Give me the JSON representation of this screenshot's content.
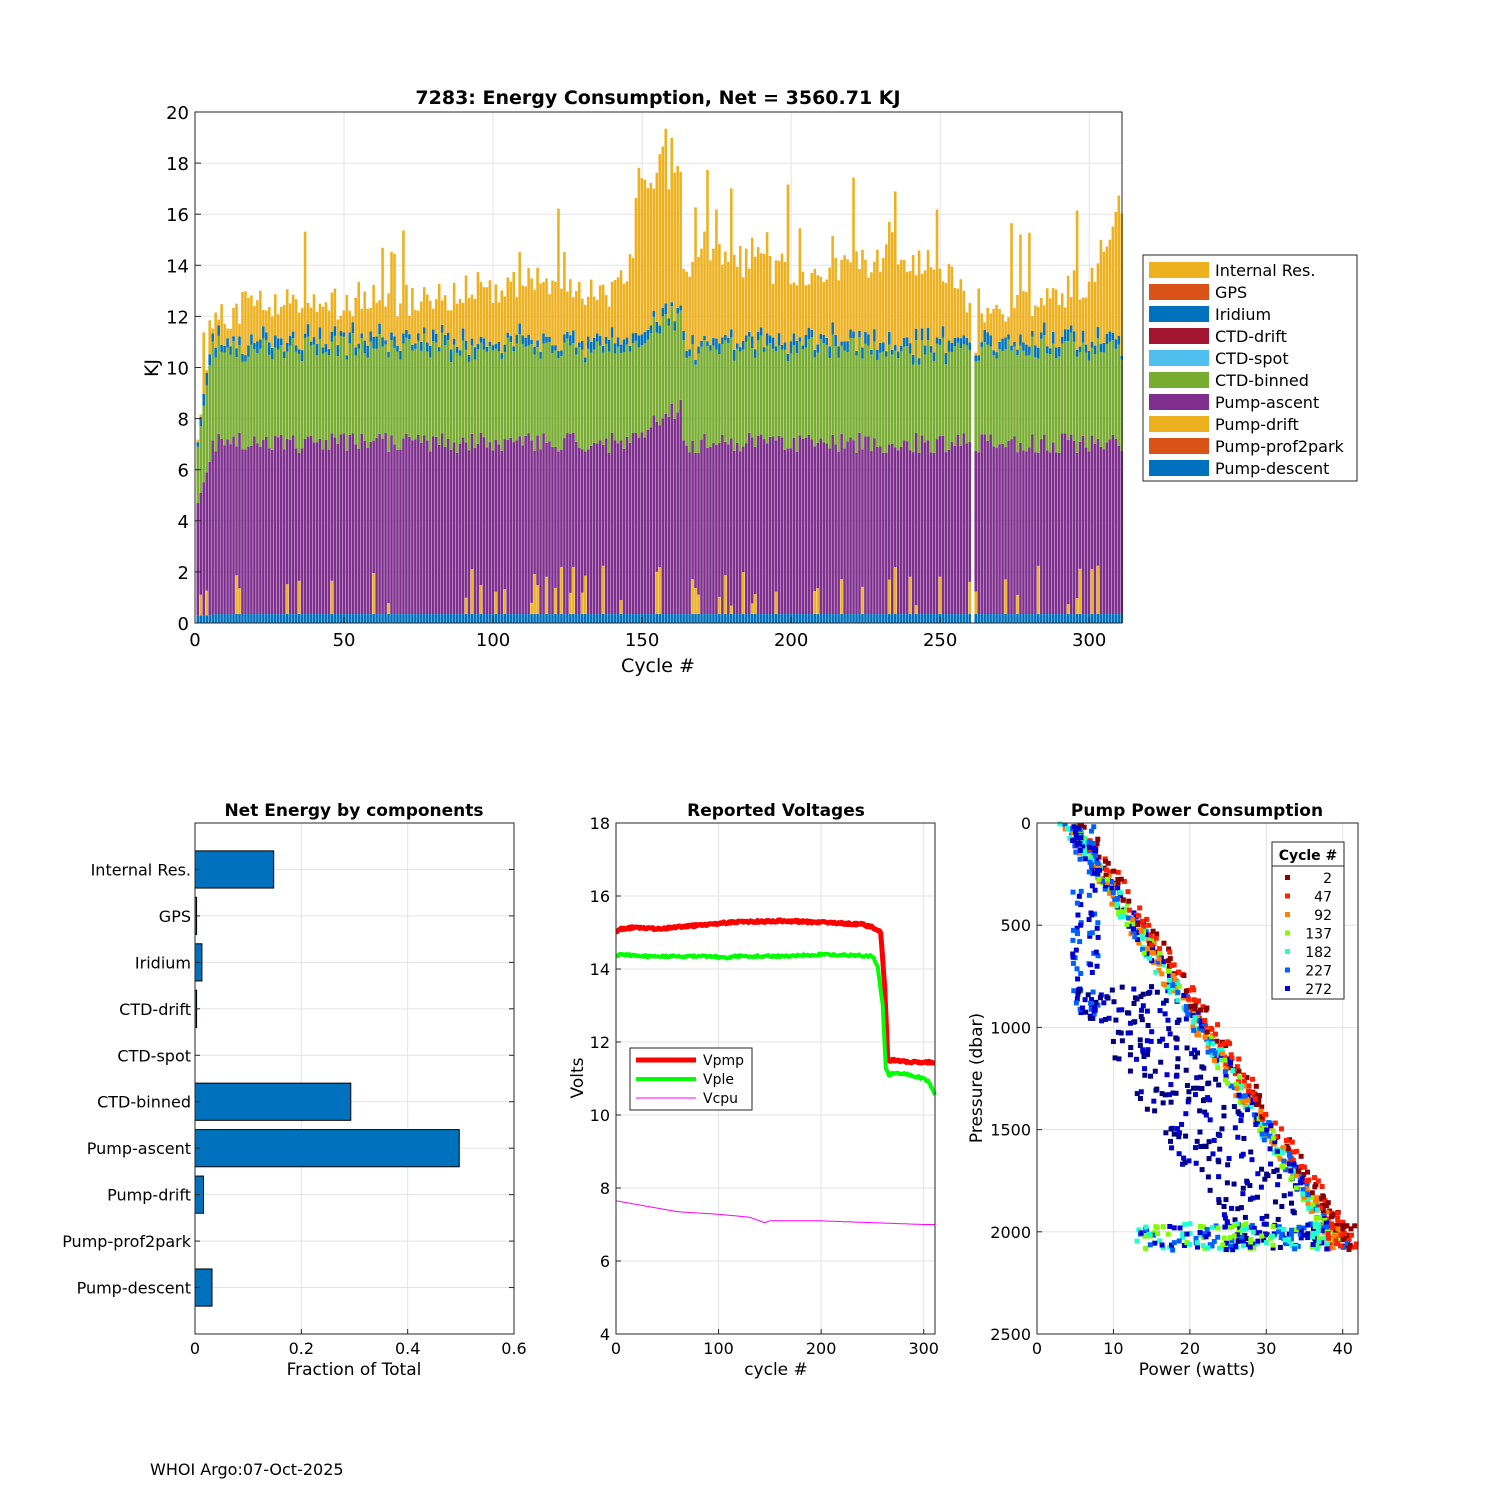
{
  "footer": "WHOI Argo:07-Oct-2025",
  "chart_data": [
    {
      "type": "bar",
      "stacked": true,
      "title": "7283: Energy Consumption,  Net = 3560.71 KJ",
      "xlabel": "Cycle #",
      "ylabel": "KJ",
      "xlim": [
        0,
        311
      ],
      "ylim": [
        0,
        20
      ],
      "xticks": [
        0,
        50,
        100,
        150,
        200,
        250,
        300
      ],
      "yticks": [
        0,
        2,
        4,
        6,
        8,
        10,
        12,
        14,
        16,
        18,
        20
      ],
      "grid": true,
      "legend_position": "outside-right",
      "legend": [
        "Internal Res.",
        "GPS",
        "Iridium",
        "CTD-drift",
        "CTD-spot",
        "CTD-binned",
        "Pump-ascent",
        "Pump-drift",
        "Pump-prof2park",
        "Pump-descent"
      ],
      "colors": {
        "Internal Res.": "#EDB120",
        "GPS": "#D95319",
        "Iridium": "#0072BD",
        "CTD-drift": "#A2142F",
        "CTD-spot": "#4DBEEE",
        "CTD-binned": "#77AC30",
        "Pump-ascent": "#7E2F8E",
        "Pump-drift": "#EDB120",
        "Pump-prof2park": "#D95319",
        "Pump-descent": "#0072BD"
      },
      "num_cycles": 311,
      "typical_values_kj": {
        "Pump-descent": 0.35,
        "Pump-ascent": 6.6,
        "CTD-binned": 3.6,
        "Iridium": 0.2,
        "Internal Res.": 1.6
      },
      "total_keypoints": {
        "cycles": [
          1,
          4,
          5,
          6,
          14,
          20,
          30,
          40,
          60,
          80,
          100,
          120,
          140,
          145,
          150,
          155,
          160,
          163,
          164,
          170,
          180,
          200,
          220,
          240,
          250,
          258,
          260,
          262,
          263,
          270,
          280,
          290,
          300,
          305,
          311
        ],
        "totals": [
          6.5,
          9.0,
          11.2,
          11.5,
          12.0,
          12.3,
          12.5,
          12.3,
          12.3,
          12.5,
          13.0,
          13.0,
          12.8,
          13.5,
          15.5,
          16.5,
          17.0,
          15.0,
          13.0,
          13.8,
          14.0,
          13.5,
          14.0,
          14.0,
          13.8,
          13.0,
          12.0,
          7.5,
          12.2,
          12.0,
          12.2,
          12.8,
          13.0,
          14.0,
          16.5
        ]
      }
    },
    {
      "type": "bar",
      "orientation": "horizontal",
      "title": "Net Energy by components",
      "xlabel": "Fraction of Total",
      "ylabel": "",
      "xlim": [
        0,
        0.6
      ],
      "xticks": [
        0,
        0.2,
        0.4,
        0.6
      ],
      "xtick_labels": [
        "0",
        "0.2",
        "0.4",
        "0.6"
      ],
      "categories": [
        "Internal Res.",
        "GPS",
        "Iridium",
        "CTD-drift",
        "CTD-spot",
        "CTD-binned",
        "Pump-ascent",
        "Pump-drift",
        "Pump-prof2park",
        "Pump-descent"
      ],
      "values": [
        0.148,
        0.003,
        0.013,
        0.003,
        0.0,
        0.293,
        0.497,
        0.016,
        0.0,
        0.032
      ],
      "bar_color": "#0072BD",
      "grid": true
    },
    {
      "type": "line",
      "title": "Reported Voltages",
      "xlabel": "cycle #",
      "ylabel": "Volts",
      "xlim": [
        0,
        311
      ],
      "ylim": [
        4,
        18
      ],
      "xticks": [
        0,
        100,
        200,
        300
      ],
      "yticks": [
        4,
        6,
        8,
        10,
        12,
        14,
        16,
        18
      ],
      "grid": true,
      "legend_position": "middle-left",
      "series": [
        {
          "name": "Vpmp",
          "color": "#FF0000",
          "width": 5,
          "x": [
            0,
            5,
            20,
            40,
            60,
            80,
            100,
            120,
            140,
            160,
            180,
            200,
            220,
            240,
            250,
            258,
            262,
            265,
            270,
            290,
            311
          ],
          "y": [
            15.0,
            15.1,
            15.15,
            15.1,
            15.15,
            15.2,
            15.25,
            15.3,
            15.3,
            15.32,
            15.3,
            15.28,
            15.25,
            15.22,
            15.15,
            15.0,
            13.5,
            11.5,
            11.5,
            11.45,
            11.45
          ]
        },
        {
          "name": "Vple",
          "color": "#00FF00",
          "width": 4,
          "x": [
            0,
            5,
            30,
            60,
            90,
            110,
            115,
            140,
            170,
            200,
            230,
            250,
            255,
            260,
            263,
            266,
            270,
            280,
            300,
            305,
            311
          ],
          "y": [
            14.35,
            14.4,
            14.35,
            14.35,
            14.35,
            14.3,
            14.35,
            14.35,
            14.35,
            14.4,
            14.38,
            14.35,
            14.1,
            13.0,
            11.3,
            11.1,
            11.15,
            11.15,
            11.0,
            10.9,
            10.55
          ]
        },
        {
          "name": "Vcpu",
          "color": "#FF00FF",
          "width": 1,
          "x": [
            0,
            30,
            60,
            100,
            130,
            145,
            150,
            200,
            250,
            300,
            311
          ],
          "y": [
            7.65,
            7.5,
            7.35,
            7.28,
            7.2,
            7.05,
            7.1,
            7.1,
            7.05,
            7.0,
            7.0
          ]
        }
      ]
    },
    {
      "type": "scatter",
      "title": "Pump Power Consumption",
      "xlabel": "Power (watts)",
      "ylabel": "Pressure (dbar)",
      "xlim": [
        0,
        42
      ],
      "ylim": [
        2500,
        0
      ],
      "y_reversed": true,
      "xticks": [
        0,
        10,
        20,
        30,
        40
      ],
      "yticks": [
        0,
        500,
        1000,
        1500,
        2000,
        2500
      ],
      "grid": true,
      "legend_position": "top-right",
      "legend_title": "Cycle #",
      "legend": [
        "2",
        "47",
        "92",
        "137",
        "182",
        "227",
        "272"
      ],
      "legend_colors": [
        "#8B0000",
        "#FF2000",
        "#FF8000",
        "#80FF00",
        "#20FFD0",
        "#0060FF",
        "#0000D0"
      ],
      "colormap": "jet, dark blue (late cycles) to dark red (early cycles)",
      "groups": [
        {
          "name": "ascent profile (main band)",
          "x_range": [
            3,
            42
          ],
          "y_range": [
            0,
            2100
          ],
          "trend": "power increases linearly with pressure: ~4 W at 0 dbar to ~40 W at 2000 dbar"
        },
        {
          "name": "low-power branch",
          "x_range": [
            4.5,
            8
          ],
          "y_range": [
            0,
            960
          ]
        },
        {
          "name": "scattered dark-blue",
          "x_range": [
            10,
            35
          ],
          "y_range": [
            800,
            2100
          ]
        },
        {
          "name": "deep horizontal cluster",
          "x_range": [
            13,
            42
          ],
          "y_range": [
            1950,
            2100
          ]
        }
      ]
    }
  ]
}
